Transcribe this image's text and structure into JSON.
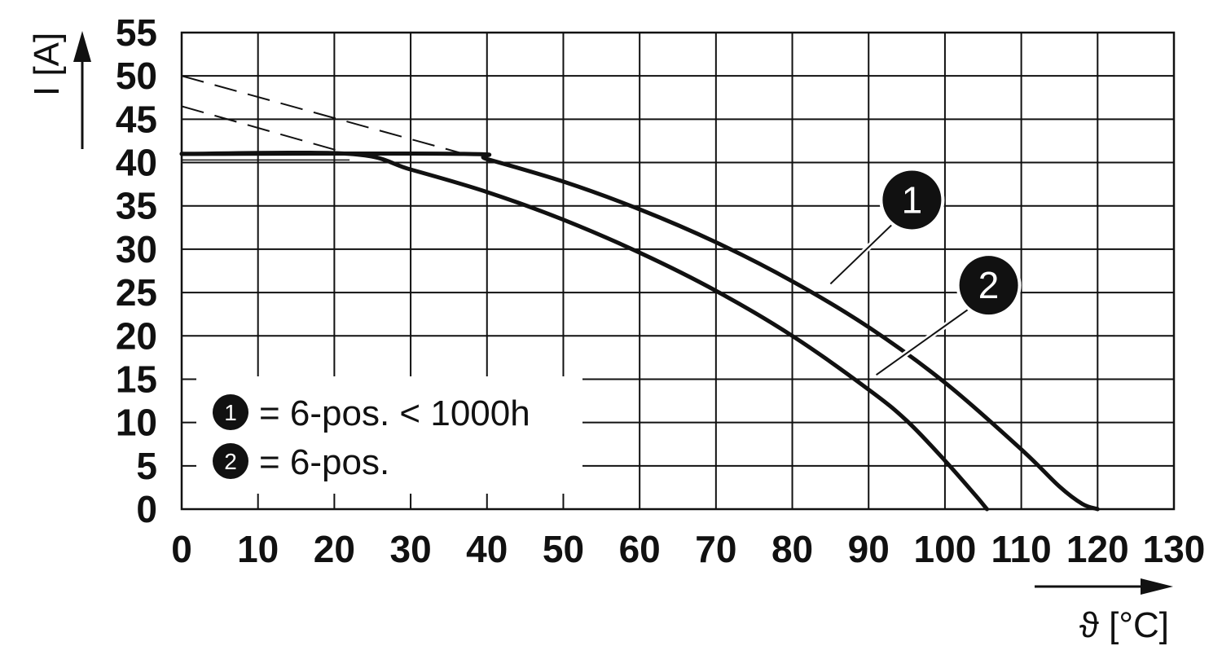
{
  "chart_data": {
    "type": "line",
    "xlabel": "ϑ [°C]",
    "ylabel": "I [A]",
    "xlim": [
      0,
      130
    ],
    "ylim": [
      0,
      55
    ],
    "xticks": [
      0,
      10,
      20,
      30,
      40,
      50,
      60,
      70,
      80,
      90,
      100,
      110,
      120,
      130
    ],
    "yticks": [
      0,
      5,
      10,
      15,
      20,
      25,
      30,
      35,
      40,
      45,
      50,
      55
    ],
    "grid": true,
    "legend": {
      "placement": "bottom-left",
      "entries": [
        {
          "marker": "1",
          "text": "= 6-pos. < 1000h"
        },
        {
          "marker": "2",
          "text": "= 6-pos."
        }
      ]
    },
    "series": [
      {
        "marker": "1",
        "extrapolated": {
          "x": [
            0,
            37
          ],
          "y": [
            50,
            41
          ]
        },
        "x": [
          0,
          37,
          40,
          50,
          60,
          70,
          80,
          90,
          100,
          110,
          115,
          118,
          120
        ],
        "y": [
          41,
          41,
          40.4,
          37.8,
          34.6,
          30.8,
          26.3,
          21,
          14.6,
          6.9,
          2.6,
          0.6,
          0
        ]
      },
      {
        "marker": "2",
        "extrapolated": {
          "x": [
            0,
            22
          ],
          "y": [
            46.5,
            41
          ]
        },
        "x": [
          0,
          22,
          30,
          40,
          50,
          60,
          70,
          80,
          90,
          95,
          100,
          104,
          105.5
        ],
        "y": [
          41,
          41,
          39.2,
          36.6,
          33.4,
          29.6,
          25.2,
          20,
          13.8,
          10.2,
          5.6,
          1.6,
          0
        ]
      }
    ],
    "callouts": [
      {
        "label": "1",
        "at": [
          85,
          26
        ]
      },
      {
        "label": "2",
        "at": [
          91,
          15.5
        ]
      }
    ]
  }
}
